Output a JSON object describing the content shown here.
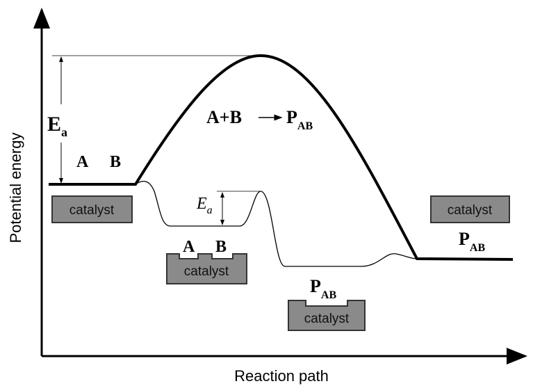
{
  "axes": {
    "y_label": "Potential energy",
    "x_label": "Reaction path"
  },
  "uncatalyzed": {
    "activation": {
      "main": "E",
      "sub": "a"
    },
    "reactants": [
      "A",
      "B"
    ],
    "equation": {
      "left": "A+B",
      "product": {
        "main": "P",
        "sub": "AB"
      }
    }
  },
  "catalyzed": {
    "activation": {
      "main": "E",
      "sub": "a"
    },
    "catalyst_start": "catalyst",
    "adsorbed": {
      "species": [
        "A",
        "B"
      ],
      "catalyst": "catalyst"
    },
    "product_adsorbed": {
      "main": "P",
      "sub": "AB",
      "catalyst": "catalyst"
    },
    "catalyst_end": "catalyst",
    "product": {
      "main": "P",
      "sub": "AB"
    }
  }
}
